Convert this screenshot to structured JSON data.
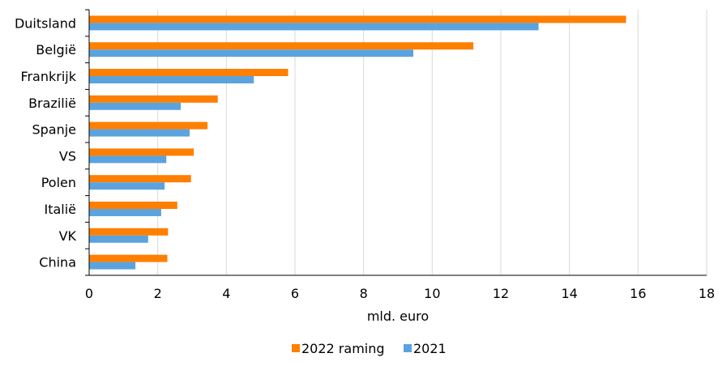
{
  "chart_data": {
    "type": "bar",
    "orientation": "horizontal",
    "categories": [
      "Duitsland",
      "België",
      "Frankrijk",
      "Brazilië",
      "Spanje",
      "VS",
      "Polen",
      "Italië",
      "VK",
      "China"
    ],
    "series": [
      {
        "name": "2022 raming",
        "color": "#FF7F00",
        "values": [
          15.65,
          11.2,
          5.8,
          3.75,
          3.45,
          3.05,
          2.97,
          2.57,
          2.3,
          2.28
        ]
      },
      {
        "name": "2021",
        "color": "#5BA3DE",
        "values": [
          13.1,
          9.45,
          4.8,
          2.67,
          2.93,
          2.25,
          2.2,
          2.1,
          1.72,
          1.35
        ]
      }
    ],
    "xlabel": "mld. euro",
    "xlim": [
      0,
      18
    ],
    "xticks": [
      "0",
      "2",
      "4",
      "6",
      "8",
      "10",
      "12",
      "14",
      "16",
      "18"
    ],
    "grid": "vertical",
    "legend": "bottom"
  }
}
